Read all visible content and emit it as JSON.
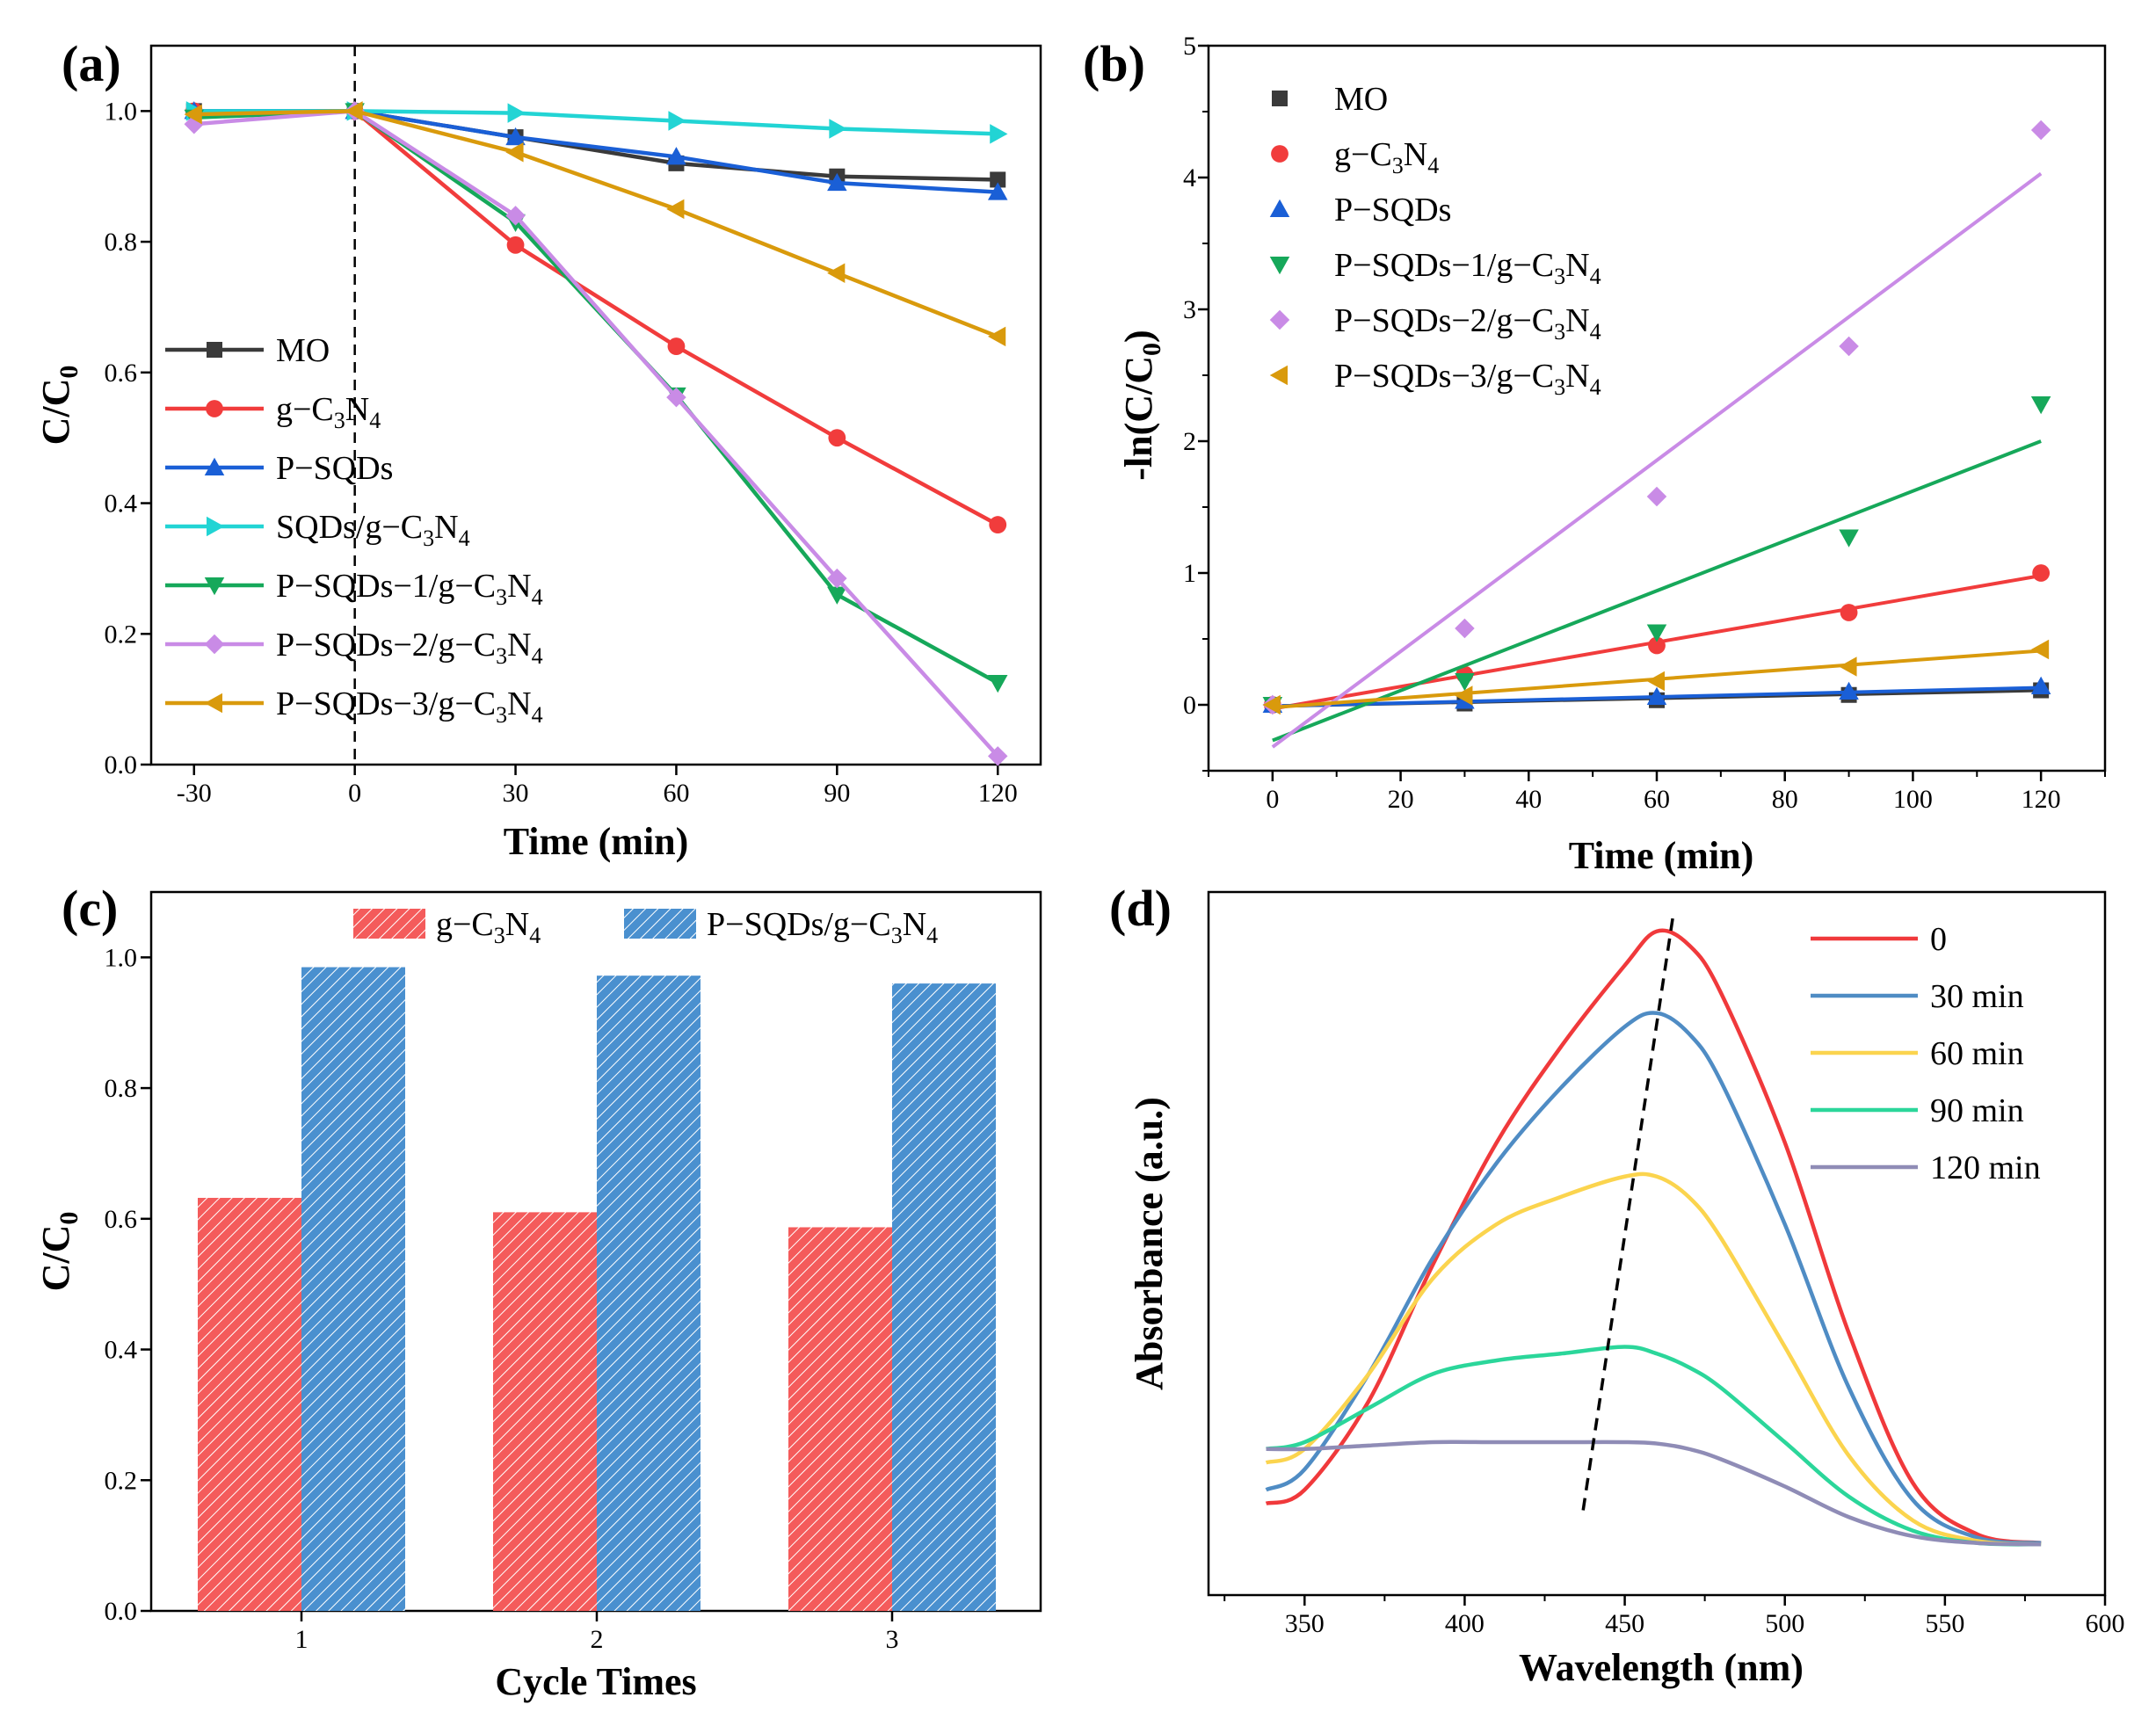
{
  "colors": {
    "black": "#3a3a3a",
    "red": "#f13c3c",
    "blue": "#1a5fd6",
    "cyan": "#22d4d4",
    "green": "#16a85a",
    "purple": "#c98be6",
    "orange": "#d99a0c",
    "bar_red": "#f45b5b",
    "bar_blue": "#4a90cf",
    "uv_red": "#f0393b",
    "uv_blue": "#4f8cc4",
    "uv_yellow": "#fbd44e",
    "uv_green": "#2bd69a",
    "uv_gray": "#8f8cb6"
  },
  "chart_data": [
    {
      "panel": "(a)",
      "type": "line",
      "xlabel": "Time (min)",
      "ylabel": "C/C",
      "ylabel_sub": "0",
      "xlim": [
        -38,
        128
      ],
      "ylim": [
        0,
        1.1
      ],
      "xticks": [
        -30,
        0,
        30,
        60,
        90,
        120
      ],
      "xtick_labels": [
        "-30",
        "0",
        "30",
        "60",
        "90",
        "120"
      ],
      "yticks": [
        0,
        0.2,
        0.4,
        0.6,
        0.8,
        1.0
      ],
      "ytick_labels": [
        "0.0",
        "0.2",
        "0.4",
        "0.6",
        "0.8",
        "1.0"
      ],
      "dashed_vline_x": 0,
      "x": [
        -30,
        0,
        30,
        60,
        90,
        120
      ],
      "series": [
        {
          "name": "MO",
          "label": "MO",
          "sub": "",
          "tail": "",
          "color": "black",
          "marker": "square",
          "values": [
            1.0,
            1.0,
            0.96,
            0.92,
            0.9,
            0.895
          ]
        },
        {
          "name": "g-C3N4",
          "label": "g−C",
          "sub": "3",
          "mid": "N",
          "sub2": "4",
          "tail": "",
          "color": "red",
          "marker": "circle",
          "values": [
            1.0,
            1.0,
            0.795,
            0.64,
            0.5,
            0.367
          ]
        },
        {
          "name": "P-SQDs",
          "label": "P−SQDs",
          "sub": "",
          "tail": "",
          "color": "blue",
          "marker": "triangle-up",
          "values": [
            1.0,
            1.0,
            0.96,
            0.93,
            0.89,
            0.876
          ]
        },
        {
          "name": "SQDs/g-C3N4",
          "label": "SQDs/g−C",
          "sub": "3",
          "mid": "N",
          "sub2": "4",
          "tail": "",
          "color": "cyan",
          "marker": "triangle-right",
          "values": [
            1.0,
            1.0,
            0.997,
            0.985,
            0.973,
            0.965
          ]
        },
        {
          "name": "P-SQDs-1/g-C3N4",
          "label": "P−SQDs−1/g−C",
          "sub": "3",
          "mid": "N",
          "sub2": "4",
          "tail": "",
          "color": "green",
          "marker": "triangle-down",
          "values": [
            0.99,
            1.0,
            0.83,
            0.565,
            0.26,
            0.125
          ]
        },
        {
          "name": "P-SQDs-2/g-C3N4",
          "label": "P−SQDs−2/g−C",
          "sub": "3",
          "mid": "N",
          "sub2": "4",
          "tail": "",
          "color": "purple",
          "marker": "diamond",
          "values": [
            0.98,
            1.0,
            0.84,
            0.562,
            0.285,
            0.013
          ]
        },
        {
          "name": "P-SQDs-3/g-C3N4",
          "label": "P−SQDs−3/g−C",
          "sub": "3",
          "mid": "N",
          "sub2": "4",
          "tail": "",
          "color": "orange",
          "marker": "triangle-left",
          "values": [
            0.995,
            1.0,
            0.937,
            0.85,
            0.752,
            0.655
          ]
        }
      ]
    },
    {
      "panel": "(b)",
      "type": "scatter",
      "xlabel": "Time (min)",
      "ylabel": "-ln(C/C",
      "ylabel_sub": "0",
      "ylabel_tail": ")",
      "xlim": [
        -10,
        130
      ],
      "ylim": [
        -0.5,
        5
      ],
      "xticks": [
        0,
        20,
        40,
        60,
        80,
        100,
        120
      ],
      "xtick_labels": [
        "0",
        "20",
        "40",
        "60",
        "80",
        "100",
        "120"
      ],
      "yticks": [
        0,
        1,
        2,
        3,
        4,
        5
      ],
      "ytick_labels": [
        "0",
        "1",
        "2",
        "3",
        "4",
        "5"
      ],
      "x": [
        0,
        30,
        60,
        90,
        120
      ],
      "series": [
        {
          "name": "MO",
          "label": "MO",
          "color": "black",
          "marker": "square",
          "values": [
            0,
            0.01,
            0.035,
            0.075,
            0.11
          ],
          "fit": [
            -0.01,
            0.11
          ]
        },
        {
          "name": "g-C3N4",
          "label": "g−C",
          "sub": "3",
          "mid": "N",
          "sub2": "4",
          "color": "red",
          "marker": "circle",
          "values": [
            0,
            0.23,
            0.45,
            0.7,
            1.0
          ],
          "fit": [
            -0.03,
            0.98
          ]
        },
        {
          "name": "P-SQDs",
          "label": "P−SQDs",
          "color": "blue",
          "marker": "triangle-up",
          "values": [
            0,
            0.03,
            0.06,
            0.1,
            0.14
          ],
          "fit": [
            -0.01,
            0.13
          ]
        },
        {
          "name": "P-SQDs-1/g-C3N4",
          "label": "P−SQDs−1/g−C",
          "sub": "3",
          "mid": "N",
          "sub2": "4",
          "color": "green",
          "marker": "triangle-down",
          "values": [
            0,
            0.18,
            0.55,
            1.27,
            2.28
          ],
          "fit": [
            -0.27,
            2.0
          ]
        },
        {
          "name": "P-SQDs-2/g-C3N4",
          "label": "P−SQDs−2/g−C",
          "sub": "3",
          "mid": "N",
          "sub2": "4",
          "color": "purple",
          "marker": "diamond",
          "values": [
            0,
            0.58,
            1.58,
            2.72,
            4.36
          ],
          "fit": [
            -0.32,
            4.03
          ]
        },
        {
          "name": "P-SQDs-3/g-C3N4",
          "label": "P−SQDs−3/g−C",
          "sub": "3",
          "mid": "N",
          "sub2": "4",
          "color": "orange",
          "marker": "triangle-left",
          "values": [
            0,
            0.07,
            0.18,
            0.29,
            0.42
          ],
          "fit": [
            -0.02,
            0.41
          ]
        }
      ]
    },
    {
      "panel": "(c)",
      "type": "bar",
      "xlabel": "Cycle Times",
      "ylabel": "C/C",
      "ylabel_sub": "0",
      "ylim": [
        0,
        1.1
      ],
      "yticks": [
        0,
        0.2,
        0.4,
        0.6,
        0.8,
        1.0
      ],
      "ytick_labels": [
        "0.0",
        "0.2",
        "0.4",
        "0.6",
        "0.8",
        "1.0"
      ],
      "categories": [
        "1",
        "2",
        "3"
      ],
      "series": [
        {
          "name": "g-C3N4",
          "label": "g−C",
          "sub": "3",
          "mid": "N",
          "sub2": "4",
          "color": "bar_red",
          "values": [
            0.632,
            0.61,
            0.587
          ]
        },
        {
          "name": "P-SQDs/g-C3N4",
          "label": "P−SQDs/g−C",
          "sub": "3",
          "mid": "N",
          "sub2": "4",
          "color": "bar_blue",
          "values": [
            0.985,
            0.972,
            0.96
          ]
        }
      ]
    },
    {
      "panel": "(d)",
      "type": "line",
      "xlabel": "Wavelength (nm)",
      "ylabel": "Absorbance (a.u.)",
      "xlim": [
        320,
        600
      ],
      "ylim": [
        0,
        1.0
      ],
      "xticks": [
        350,
        400,
        450,
        500,
        550,
        600
      ],
      "xtick_labels": [
        "350",
        "400",
        "450",
        "500",
        "550",
        "600"
      ],
      "x": [
        338,
        350,
        370,
        390,
        410,
        430,
        450,
        460,
        470,
        480,
        500,
        520,
        540,
        560,
        580
      ],
      "series": [
        {
          "name": "0",
          "label": "0",
          "color": "uv_red",
          "values": [
            0.07,
            0.09,
            0.22,
            0.42,
            0.6,
            0.74,
            0.86,
            0.91,
            0.89,
            0.82,
            0.6,
            0.32,
            0.1,
            0.025,
            0.012
          ]
        },
        {
          "name": "30 min",
          "label": "30 min",
          "color": "uv_blue",
          "values": [
            0.09,
            0.12,
            0.26,
            0.43,
            0.57,
            0.68,
            0.77,
            0.79,
            0.76,
            0.69,
            0.48,
            0.24,
            0.075,
            0.02,
            0.012
          ]
        },
        {
          "name": "60 min",
          "label": "60 min",
          "color": "uv_yellow",
          "values": [
            0.13,
            0.15,
            0.26,
            0.4,
            0.48,
            0.52,
            0.55,
            0.55,
            0.52,
            0.46,
            0.3,
            0.14,
            0.045,
            0.015,
            0.01
          ]
        },
        {
          "name": "90 min",
          "label": "90 min",
          "color": "uv_green",
          "values": [
            0.15,
            0.16,
            0.21,
            0.26,
            0.28,
            0.29,
            0.3,
            0.29,
            0.27,
            0.24,
            0.16,
            0.08,
            0.03,
            0.012,
            0.01
          ]
        },
        {
          "name": "120 min",
          "label": "120 min",
          "color": "uv_gray",
          "values": [
            0.15,
            0.15,
            0.155,
            0.16,
            0.16,
            0.16,
            0.16,
            0.158,
            0.15,
            0.135,
            0.095,
            0.05,
            0.022,
            0.012,
            0.01
          ]
        }
      ],
      "dashed_line": {
        "x": [
          437,
          465
        ],
        "y": [
          0.06,
          0.93
        ]
      }
    }
  ]
}
